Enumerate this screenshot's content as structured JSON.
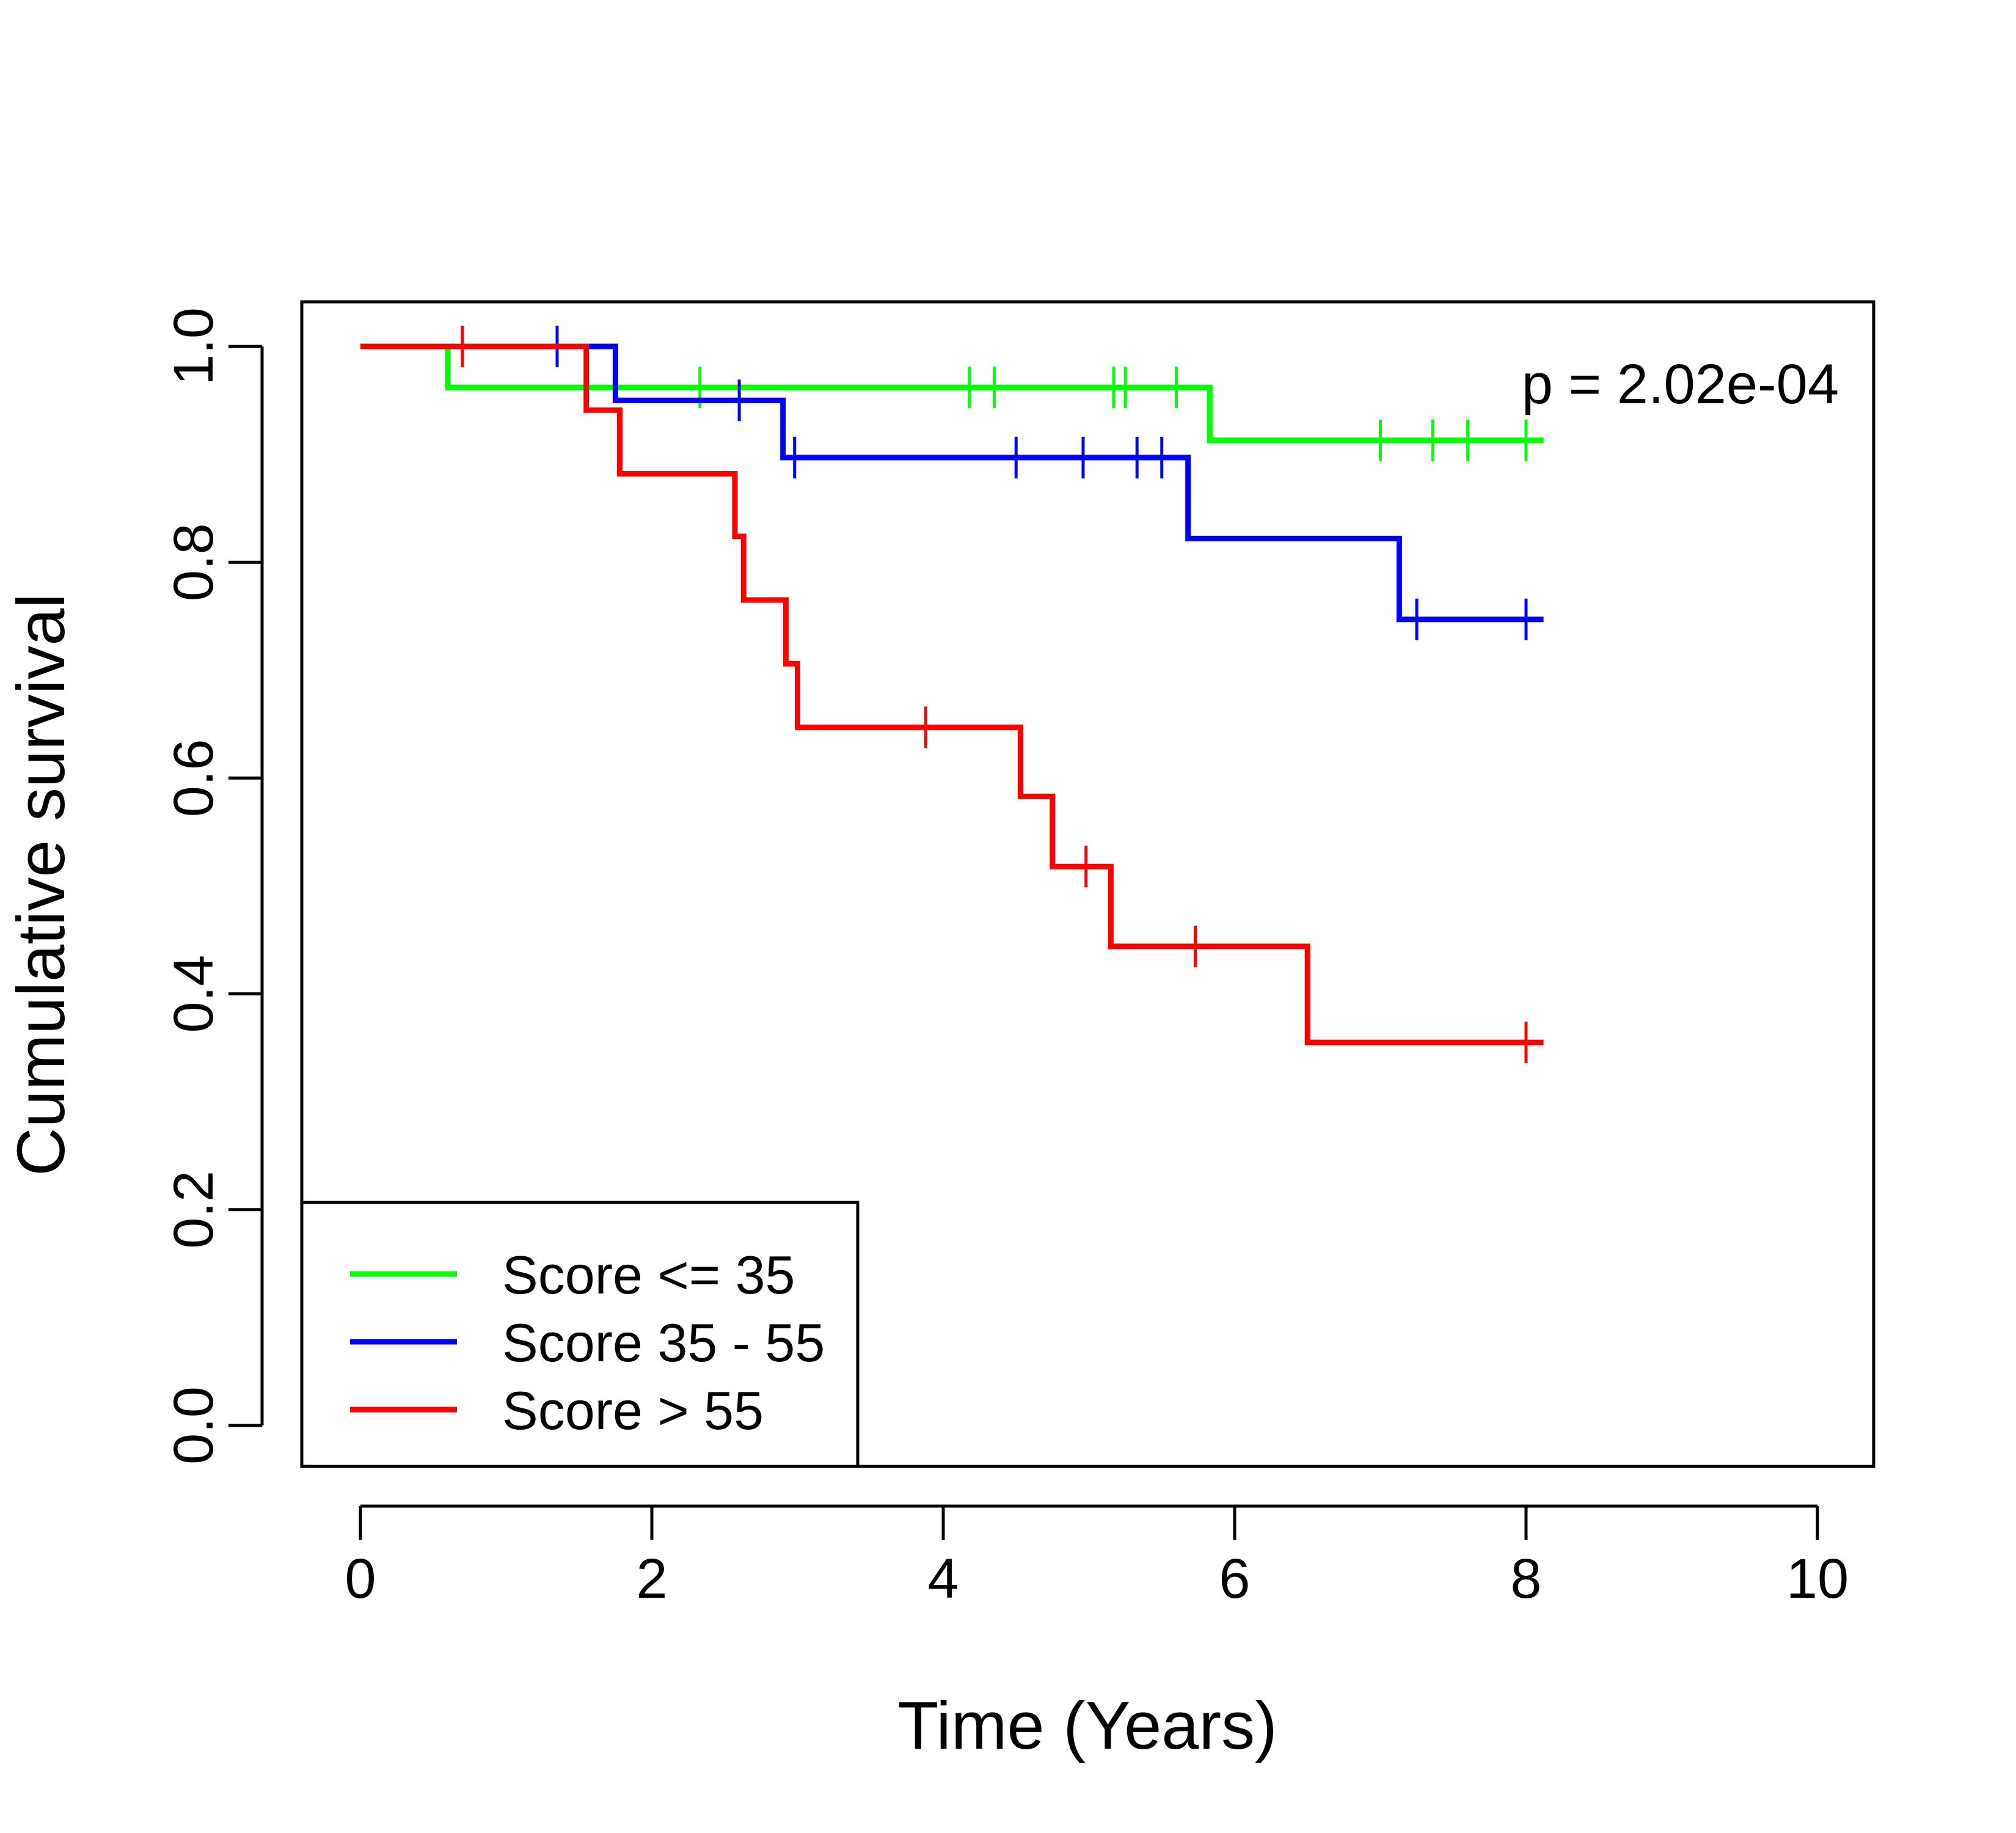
{
  "chart_data": {
    "type": "line",
    "subtype": "kaplan-meier-step",
    "title": "",
    "xlabel": "Time (Years)",
    "ylabel": "Cumulative survival",
    "xlim": [
      0,
      10
    ],
    "ylim": [
      0,
      1
    ],
    "xticks": [
      "0",
      "2",
      "4",
      "6",
      "8",
      "10"
    ],
    "yticks": [
      "0.0",
      "0.2",
      "0.4",
      "0.6",
      "0.8",
      "1.0"
    ],
    "grid": false,
    "legend_position": "bottom-left",
    "annotation": "p = 2.02e-04",
    "series": [
      {
        "name": "Score <= 35",
        "color": "#00ff00",
        "steps": [
          [
            0,
            1.0
          ],
          [
            0.6,
            0.962
          ],
          [
            5.83,
            0.913
          ],
          [
            8.12,
            0.913
          ]
        ],
        "censor_x": [
          2.33,
          4.18,
          4.35,
          5.17,
          5.25,
          5.6,
          7.0,
          7.36,
          7.6,
          8.0
        ]
      },
      {
        "name": "Score 35 - 55",
        "color": "#0000ff",
        "steps": [
          [
            0,
            1.0
          ],
          [
            1.75,
            0.95
          ],
          [
            2.9,
            0.897
          ],
          [
            5.68,
            0.822
          ],
          [
            7.13,
            0.747
          ],
          [
            8.12,
            0.747
          ]
        ],
        "censor_x": [
          1.35,
          2.6,
          2.98,
          4.5,
          4.96,
          5.33,
          5.5,
          7.25,
          8.0
        ]
      },
      {
        "name": "Score > 55",
        "color": "#ff0000",
        "steps": [
          [
            0,
            1.0
          ],
          [
            1.55,
            0.941
          ],
          [
            1.78,
            0.882
          ],
          [
            2.57,
            0.824
          ],
          [
            2.63,
            0.765
          ],
          [
            2.92,
            0.706
          ],
          [
            3.0,
            0.647
          ],
          [
            4.53,
            0.583
          ],
          [
            4.75,
            0.518
          ],
          [
            5.15,
            0.444
          ],
          [
            6.5,
            0.355
          ],
          [
            8.12,
            0.355
          ]
        ],
        "censor_x": [
          0.7,
          3.88,
          4.98,
          5.73,
          8.0
        ]
      }
    ]
  }
}
